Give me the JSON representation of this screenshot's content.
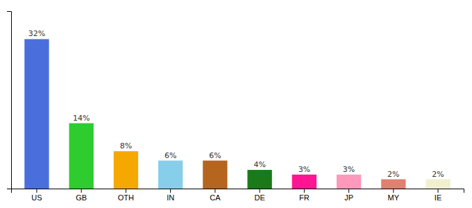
{
  "chart_data": {
    "type": "bar",
    "categories": [
      "US",
      "GB",
      "OTH",
      "IN",
      "CA",
      "DE",
      "FR",
      "JP",
      "MY",
      "IE"
    ],
    "values": [
      32,
      14,
      8,
      6,
      6,
      4,
      3,
      3,
      2,
      2
    ],
    "value_labels": [
      "32%",
      "14%",
      "8%",
      "6%",
      "6%",
      "4%",
      "3%",
      "3%",
      "2%",
      "2%"
    ],
    "colors": [
      "#4a6fdc",
      "#2ecc2e",
      "#f5a800",
      "#87ceeb",
      "#b5651d",
      "#1a7a1a",
      "#ff1493",
      "#ff99bb",
      "#e08070",
      "#f0f0d0"
    ],
    "ylim": [
      0,
      38
    ],
    "data_labels": true,
    "tick_labels": "x",
    "grid": false
  }
}
